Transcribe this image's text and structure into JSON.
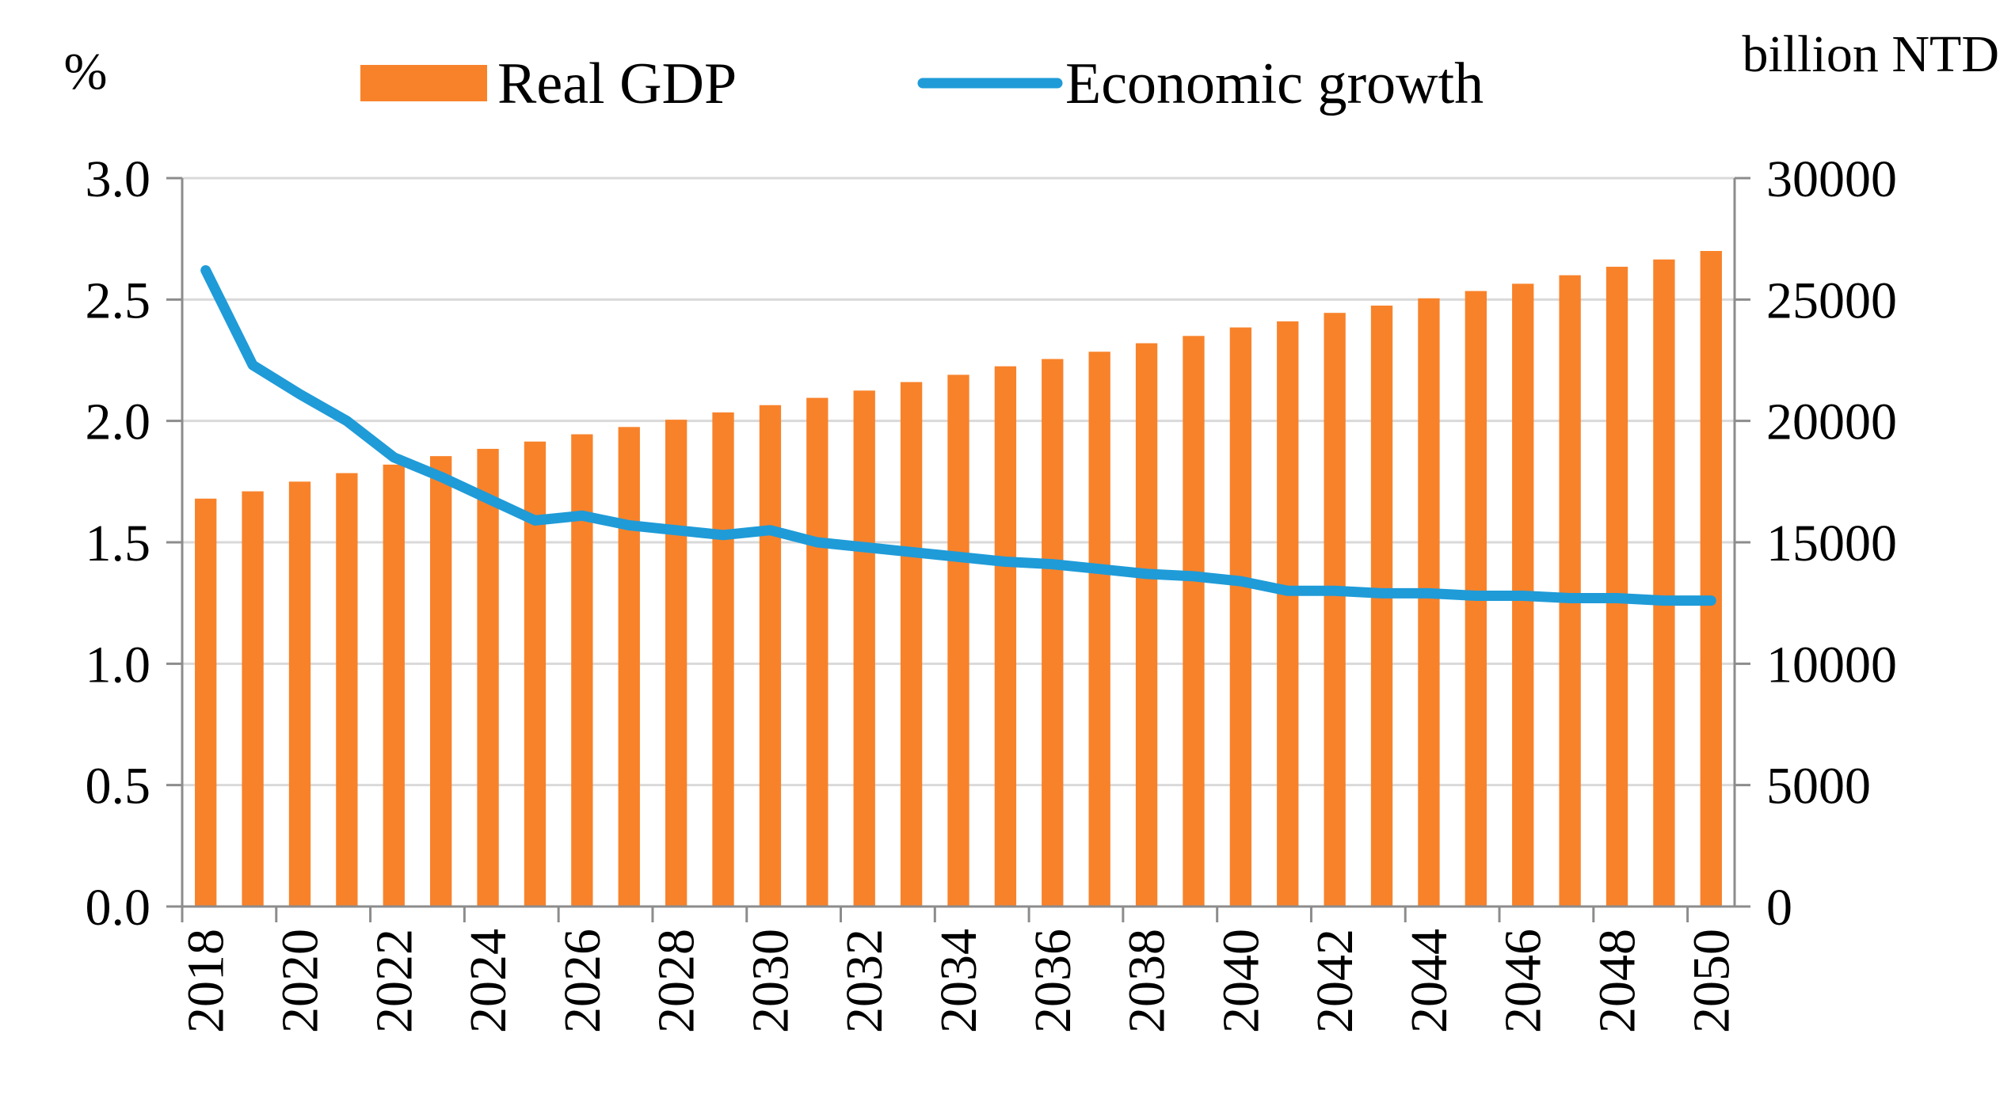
{
  "chart_data": {
    "type": "bar+line",
    "title": "",
    "y_left_label": "%",
    "y_right_label": "billion NTD",
    "y_left_range": [
      0,
      3
    ],
    "y_left_ticks": [
      "0.0",
      "0.5",
      "1.0",
      "1.5",
      "2.0",
      "2.5",
      "3.0"
    ],
    "y_right_range": [
      0,
      30000
    ],
    "y_right_ticks": [
      "0",
      "5000",
      "10000",
      "15000",
      "20000",
      "25000",
      "30000"
    ],
    "grid": "horizontal",
    "legend_position": "top",
    "x": [
      2018,
      2019,
      2020,
      2021,
      2022,
      2023,
      2024,
      2025,
      2026,
      2027,
      2028,
      2029,
      2030,
      2031,
      2032,
      2033,
      2034,
      2035,
      2036,
      2037,
      2038,
      2039,
      2040,
      2041,
      2042,
      2043,
      2044,
      2045,
      2046,
      2047,
      2048,
      2049,
      2050
    ],
    "x_tick_labels": [
      "2018",
      "2020",
      "2022",
      "2024",
      "2026",
      "2028",
      "2030",
      "2032",
      "2034",
      "2036",
      "2038",
      "2040",
      "2042",
      "2044",
      "2046",
      "2048",
      "2050"
    ],
    "series": [
      {
        "name": "Real GDP",
        "type": "bar",
        "axis": "right",
        "color": "#F8822A",
        "values": [
          16800,
          17100,
          17500,
          17850,
          18200,
          18550,
          18850,
          19150,
          19450,
          19750,
          20050,
          20350,
          20650,
          20950,
          21250,
          21600,
          21900,
          22250,
          22550,
          22850,
          23200,
          23500,
          23850,
          24100,
          24450,
          24750,
          25050,
          25350,
          25650,
          26000,
          26350,
          26650,
          27000
        ]
      },
      {
        "name": "Economic growth",
        "type": "line",
        "axis": "left",
        "color": "#1F9BD8",
        "values": [
          2.62,
          2.23,
          2.11,
          2.0,
          1.85,
          1.77,
          1.68,
          1.59,
          1.61,
          1.57,
          1.55,
          1.53,
          1.55,
          1.5,
          1.48,
          1.46,
          1.44,
          1.42,
          1.41,
          1.39,
          1.37,
          1.36,
          1.34,
          1.3,
          1.3,
          1.29,
          1.29,
          1.28,
          1.28,
          1.27,
          1.27,
          1.26,
          1.26
        ]
      }
    ]
  }
}
